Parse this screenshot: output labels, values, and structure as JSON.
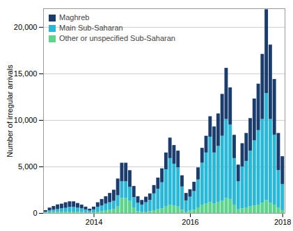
{
  "chart_data": {
    "type": "bar",
    "stacked": true,
    "ylabel": "Number of irregular arrivals",
    "categories": [
      null,
      null,
      null,
      null,
      null,
      null,
      null,
      null,
      null,
      null,
      null,
      null,
      "2014",
      null,
      null,
      null,
      null,
      null,
      null,
      null,
      null,
      null,
      null,
      null,
      null,
      null,
      null,
      null,
      null,
      null,
      null,
      null,
      null,
      null,
      null,
      null,
      "2016",
      null,
      null,
      null,
      null,
      null,
      null,
      null,
      null,
      null,
      null,
      null,
      null,
      null,
      null,
      null,
      null,
      null,
      null,
      null,
      null,
      null,
      null,
      "2018"
    ],
    "series": [
      {
        "name": "Other or unspecified Sub-Saharan",
        "color": "#5dd68c",
        "values": [
          50,
          80,
          100,
          120,
          150,
          150,
          150,
          150,
          120,
          100,
          80,
          60,
          80,
          150,
          200,
          300,
          350,
          400,
          700,
          1600,
          1600,
          1300,
          600,
          200,
          100,
          150,
          200,
          300,
          400,
          500,
          700,
          900,
          800,
          700,
          350,
          150,
          250,
          350,
          600,
          900,
          1000,
          1200,
          1000,
          1200,
          1300,
          1600,
          1500,
          900,
          400,
          500,
          600,
          700,
          800,
          900,
          1100,
          1400,
          1100,
          900,
          600,
          300
        ]
      },
      {
        "name": "Main Sub-Saharan",
        "color": "#29b8d8",
        "values": [
          100,
          200,
          250,
          300,
          350,
          400,
          500,
          500,
          450,
          400,
          300,
          200,
          300,
          500,
          600,
          700,
          800,
          900,
          1200,
          1800,
          1800,
          1500,
          1100,
          900,
          800,
          1000,
          1200,
          1800,
          2200,
          2800,
          4000,
          5000,
          4500,
          4200,
          2500,
          1200,
          1500,
          2000,
          3000,
          4500,
          5500,
          7000,
          5500,
          6000,
          7000,
          8500,
          8000,
          5000,
          3000,
          4500,
          5000,
          6000,
          7000,
          8000,
          9000,
          11500,
          9000,
          7500,
          4000,
          2800
        ]
      },
      {
        "name": "Maghreb",
        "color": "#1b3d6e",
        "values": [
          150,
          300,
          400,
          500,
          500,
          600,
          600,
          600,
          500,
          400,
          300,
          200,
          300,
          500,
          700,
          800,
          1000,
          1200,
          1800,
          2000,
          2000,
          1800,
          1200,
          700,
          500,
          600,
          700,
          900,
          1200,
          1500,
          1800,
          2200,
          2000,
          1800,
          1200,
          800,
          800,
          1000,
          1300,
          1600,
          1800,
          2200,
          2800,
          3500,
          4500,
          5500,
          4000,
          2500,
          1800,
          2500,
          3000,
          3500,
          4500,
          5000,
          7000,
          9000,
          8000,
          6000,
          4000,
          3000
        ]
      }
    ],
    "ylim": [
      0,
      22000
    ],
    "yticks": [
      0,
      {
        "value": 5000,
        "label": "5,000"
      },
      {
        "value": 10000,
        "label": "10,000"
      },
      {
        "value": 15000,
        "label": "15,000"
      },
      {
        "value": 20000,
        "label": "20,000"
      }
    ],
    "grid": true,
    "legend": "upper left"
  }
}
